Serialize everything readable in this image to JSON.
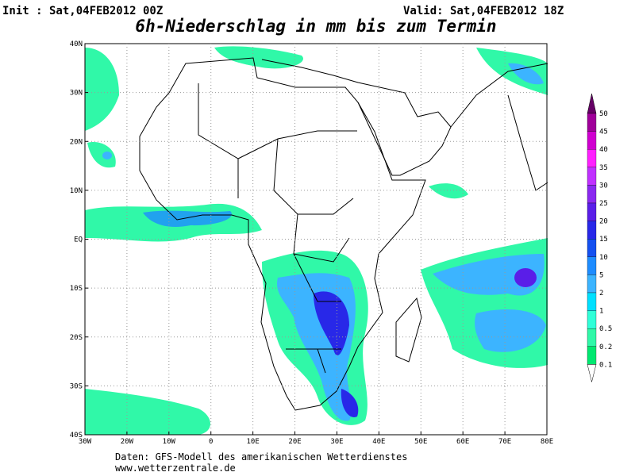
{
  "header": {
    "init": "Init : Sat,04FEB2012 00Z",
    "valid": "Valid: Sat,04FEB2012 18Z",
    "title": "6h-Niederschlag in mm bis zum Termin"
  },
  "map": {
    "lon_labels": [
      "30W",
      "20W",
      "10W",
      "0",
      "10E",
      "20E",
      "30E",
      "40E",
      "50E",
      "60E",
      "70E",
      "80E"
    ],
    "lat_labels": [
      "40N",
      "30N",
      "20N",
      "10N",
      "EQ",
      "10S",
      "20S",
      "30S",
      "40S"
    ]
  },
  "legend": {
    "levels": [
      "50",
      "45",
      "40",
      "35",
      "30",
      "25",
      "20",
      "15",
      "10",
      "5",
      "2",
      "1",
      "0.5",
      "0.2",
      "0.1"
    ],
    "colors": [
      "#660066",
      "#a0009a",
      "#d000d0",
      "#ff20ff",
      "#c030ff",
      "#8a28f0",
      "#5a1ee8",
      "#2828e8",
      "#1450f0",
      "#1e8cff",
      "#3cb4ff",
      "#00e0ff",
      "#30ffd8",
      "#30f8a8",
      "#00e870"
    ]
  },
  "footer": {
    "line1": "Daten: GFS-Modell des amerikanischen Wetterdienstes",
    "line2": "www.wetterzentrale.de"
  }
}
